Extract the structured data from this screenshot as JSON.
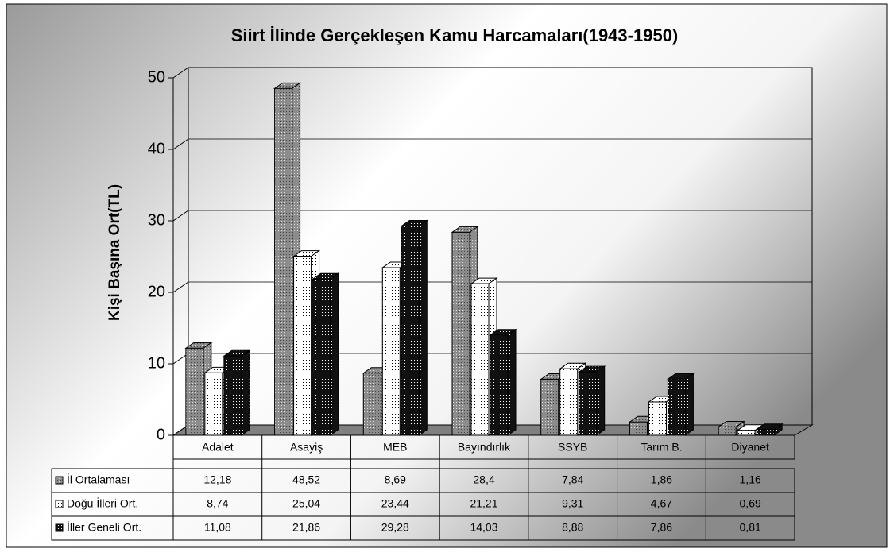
{
  "chart_data": {
    "type": "bar3d",
    "title": "Siirt İlinde Gerçekleşen Kamu Harcamaları(1943-1950)",
    "y_label": "Kişi Başına Ort(TL)",
    "categories": [
      "Adalet",
      "Asayiş",
      "MEB",
      "Bayındırlık",
      "SSYB",
      "Tarım B.",
      "Diyanet"
    ],
    "series": [
      {
        "name": "İl Ortalaması",
        "color": "#8c8c8c",
        "values": [
          12.18,
          48.52,
          8.69,
          28.4,
          7.84,
          1.86,
          1.16
        ],
        "value_labels": [
          "12,18",
          "48,52",
          "8,69",
          "28,4",
          "7,84",
          "1,86",
          "1,16"
        ]
      },
      {
        "name": "Doğu İlleri Ort.",
        "color": "#ffffff",
        "values": [
          8.74,
          25.04,
          23.44,
          21.21,
          9.31,
          4.67,
          0.69
        ],
        "value_labels": [
          "8,74",
          "25,04",
          "23,44",
          "21,21",
          "9,31",
          "4,67",
          "0,69"
        ]
      },
      {
        "name": "İller Geneli Ort.",
        "color": "#111111",
        "values": [
          11.08,
          21.86,
          29.28,
          14.03,
          8.88,
          7.86,
          0.81
        ],
        "value_labels": [
          "11,08",
          "21,86",
          "29,28",
          "14,03",
          "8,88",
          "7,86",
          "0,81"
        ]
      }
    ],
    "ylim": [
      0,
      50
    ],
    "yticks": [
      0,
      10,
      20,
      30,
      40,
      50
    ],
    "grid": true
  }
}
